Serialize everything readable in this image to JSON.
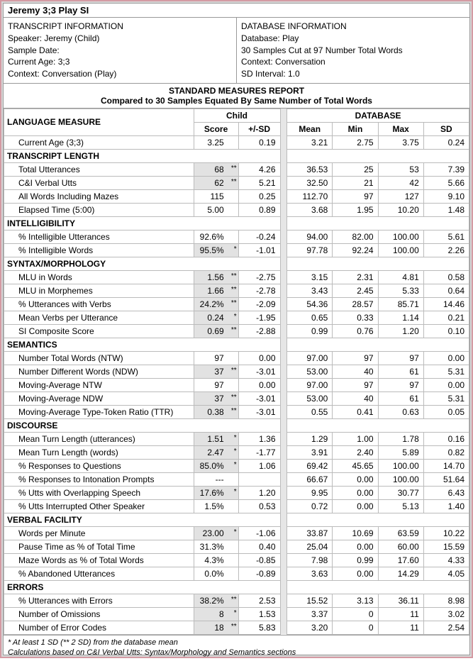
{
  "title": "Jeremy 3;3 Play SI",
  "transcriptInfo": {
    "header": "TRANSCRIPT INFORMATION",
    "speaker": "Speaker: Jeremy (Child)",
    "sampleDate": "Sample Date:",
    "age": "Current Age: 3;3",
    "context": "Context: Conversation (Play)"
  },
  "databaseInfo": {
    "header": "DATABASE INFORMATION",
    "db": "Database: Play",
    "samples": "30 Samples Cut at 97 Number Total Words",
    "context": "Context: Conversation",
    "interval": "SD Interval: 1.0"
  },
  "reportTitle": "STANDARD MEASURES REPORT",
  "reportSub": "Compared to 30 Samples Equated By Same Number of Total Words",
  "headers": {
    "measure": "LANGUAGE MEASURE",
    "child": "Child",
    "database": "DATABASE",
    "score": "Score",
    "sd": "+/-SD",
    "mean": "Mean",
    "min": "Min",
    "max": "Max",
    "sdcol": "SD"
  },
  "categories": [
    {
      "rows": [
        {
          "m": "Current Age (3;3)",
          "score": "3.25",
          "hl": false,
          "ast": "",
          "sd": "0.19",
          "mean": "3.21",
          "min": "2.75",
          "max": "3.75",
          "sdc": "0.24"
        }
      ]
    },
    {
      "name": "TRANSCRIPT LENGTH",
      "rows": [
        {
          "m": "Total Utterances",
          "score": "68",
          "hl": true,
          "ast": "**",
          "sd": "4.26",
          "mean": "36.53",
          "min": "25",
          "max": "53",
          "sdc": "7.39"
        },
        {
          "m": "C&I Verbal Utts",
          "score": "62",
          "hl": true,
          "ast": "**",
          "sd": "5.21",
          "mean": "32.50",
          "min": "21",
          "max": "42",
          "sdc": "5.66"
        },
        {
          "m": "All Words Including Mazes",
          "score": "115",
          "hl": false,
          "ast": "",
          "sd": "0.25",
          "mean": "112.70",
          "min": "97",
          "max": "127",
          "sdc": "9.10"
        },
        {
          "m": "Elapsed Time (5:00)",
          "score": "5.00",
          "hl": false,
          "ast": "",
          "sd": "0.89",
          "mean": "3.68",
          "min": "1.95",
          "max": "10.20",
          "sdc": "1.48"
        }
      ]
    },
    {
      "name": "INTELLIGIBILITY",
      "rows": [
        {
          "m": "% Intelligible Utterances",
          "score": "92.6%",
          "hl": false,
          "ast": "",
          "sd": "-0.24",
          "mean": "94.00",
          "min": "82.00",
          "max": "100.00",
          "sdc": "5.61"
        },
        {
          "m": "% Intelligible Words",
          "score": "95.5%",
          "hl": true,
          "ast": "*",
          "sd": "-1.01",
          "mean": "97.78",
          "min": "92.24",
          "max": "100.00",
          "sdc": "2.26"
        }
      ]
    },
    {
      "name": "SYNTAX/MORPHOLOGY",
      "rows": [
        {
          "m": "MLU in Words",
          "score": "1.56",
          "hl": true,
          "ast": "**",
          "sd": "-2.75",
          "mean": "3.15",
          "min": "2.31",
          "max": "4.81",
          "sdc": "0.58"
        },
        {
          "m": "MLU in Morphemes",
          "score": "1.66",
          "hl": true,
          "ast": "**",
          "sd": "-2.78",
          "mean": "3.43",
          "min": "2.45",
          "max": "5.33",
          "sdc": "0.64"
        },
        {
          "m": "% Utterances with Verbs",
          "score": "24.2%",
          "hl": true,
          "ast": "**",
          "sd": "-2.09",
          "mean": "54.36",
          "min": "28.57",
          "max": "85.71",
          "sdc": "14.46"
        },
        {
          "m": "Mean Verbs per Utterance",
          "score": "0.24",
          "hl": true,
          "ast": "*",
          "sd": "-1.95",
          "mean": "0.65",
          "min": "0.33",
          "max": "1.14",
          "sdc": "0.21"
        },
        {
          "m": "SI Composite Score",
          "score": "0.69",
          "hl": true,
          "ast": "**",
          "sd": "-2.88",
          "mean": "0.99",
          "min": "0.76",
          "max": "1.20",
          "sdc": "0.10"
        }
      ]
    },
    {
      "name": "SEMANTICS",
      "rows": [
        {
          "m": "Number Total Words (NTW)",
          "score": "97",
          "hl": false,
          "ast": "",
          "sd": "0.00",
          "mean": "97.00",
          "min": "97",
          "max": "97",
          "sdc": "0.00"
        },
        {
          "m": "Number Different Words (NDW)",
          "score": "37",
          "hl": true,
          "ast": "**",
          "sd": "-3.01",
          "mean": "53.00",
          "min": "40",
          "max": "61",
          "sdc": "5.31"
        },
        {
          "m": "Moving-Average NTW",
          "score": "97",
          "hl": false,
          "ast": "",
          "sd": "0.00",
          "mean": "97.00",
          "min": "97",
          "max": "97",
          "sdc": "0.00"
        },
        {
          "m": "Moving-Average NDW",
          "score": "37",
          "hl": true,
          "ast": "**",
          "sd": "-3.01",
          "mean": "53.00",
          "min": "40",
          "max": "61",
          "sdc": "5.31"
        },
        {
          "m": "Moving-Average Type-Token Ratio (TTR)",
          "score": "0.38",
          "hl": true,
          "ast": "**",
          "sd": "-3.01",
          "mean": "0.55",
          "min": "0.41",
          "max": "0.63",
          "sdc": "0.05"
        }
      ]
    },
    {
      "name": "DISCOURSE",
      "rows": [
        {
          "m": "Mean Turn Length (utterances)",
          "score": "1.51",
          "hl": true,
          "ast": "*",
          "sd": "1.36",
          "mean": "1.29",
          "min": "1.00",
          "max": "1.78",
          "sdc": "0.16"
        },
        {
          "m": "Mean Turn Length (words)",
          "score": "2.47",
          "hl": true,
          "ast": "*",
          "sd": "-1.77",
          "mean": "3.91",
          "min": "2.40",
          "max": "5.89",
          "sdc": "0.82"
        },
        {
          "m": "% Responses to Questions",
          "score": "85.0%",
          "hl": true,
          "ast": "*",
          "sd": "1.06",
          "mean": "69.42",
          "min": "45.65",
          "max": "100.00",
          "sdc": "14.70"
        },
        {
          "m": "% Responses to Intonation Prompts",
          "score": "---",
          "hl": false,
          "ast": "",
          "sd": "",
          "mean": "66.67",
          "min": "0.00",
          "max": "100.00",
          "sdc": "51.64"
        },
        {
          "m": "% Utts with Overlapping Speech",
          "score": "17.6%",
          "hl": true,
          "ast": "*",
          "sd": "1.20",
          "mean": "9.95",
          "min": "0.00",
          "max": "30.77",
          "sdc": "6.43"
        },
        {
          "m": "% Utts Interrupted Other Speaker",
          "score": "1.5%",
          "hl": false,
          "ast": "",
          "sd": "0.53",
          "mean": "0.72",
          "min": "0.00",
          "max": "5.13",
          "sdc": "1.40"
        }
      ]
    },
    {
      "name": "VERBAL FACILITY",
      "rows": [
        {
          "m": "Words per Minute",
          "score": "23.00",
          "hl": true,
          "ast": "*",
          "sd": "-1.06",
          "mean": "33.87",
          "min": "10.69",
          "max": "63.59",
          "sdc": "10.22"
        },
        {
          "m": "Pause Time as % of Total Time",
          "score": "31.3%",
          "hl": false,
          "ast": "",
          "sd": "0.40",
          "mean": "25.04",
          "min": "0.00",
          "max": "60.00",
          "sdc": "15.59"
        },
        {
          "m": "Maze Words as % of Total Words",
          "score": "4.3%",
          "hl": false,
          "ast": "",
          "sd": "-0.85",
          "mean": "7.98",
          "min": "0.99",
          "max": "17.60",
          "sdc": "4.33"
        },
        {
          "m": "% Abandoned Utterances",
          "score": "0.0%",
          "hl": false,
          "ast": "",
          "sd": "-0.89",
          "mean": "3.63",
          "min": "0.00",
          "max": "14.29",
          "sdc": "4.05"
        }
      ]
    },
    {
      "name": "ERRORS",
      "rows": [
        {
          "m": "% Utterances with Errors",
          "score": "38.2%",
          "hl": true,
          "ast": "**",
          "sd": "2.53",
          "mean": "15.52",
          "min": "3.13",
          "max": "36.11",
          "sdc": "8.98"
        },
        {
          "m": "Number of Omissions",
          "score": "8",
          "hl": true,
          "ast": "*",
          "sd": "1.53",
          "mean": "3.37",
          "min": "0",
          "max": "11",
          "sdc": "3.02"
        },
        {
          "m": "Number of Error Codes",
          "score": "18",
          "hl": true,
          "ast": "**",
          "sd": "5.83",
          "mean": "3.20",
          "min": "0",
          "max": "11",
          "sdc": "2.54"
        }
      ]
    }
  ],
  "footnote1": "* At least 1 SD (** 2 SD) from the database mean",
  "footnote2": "Calculations based on C&I Verbal Utts: Syntax/Morphology and Semantics sections"
}
